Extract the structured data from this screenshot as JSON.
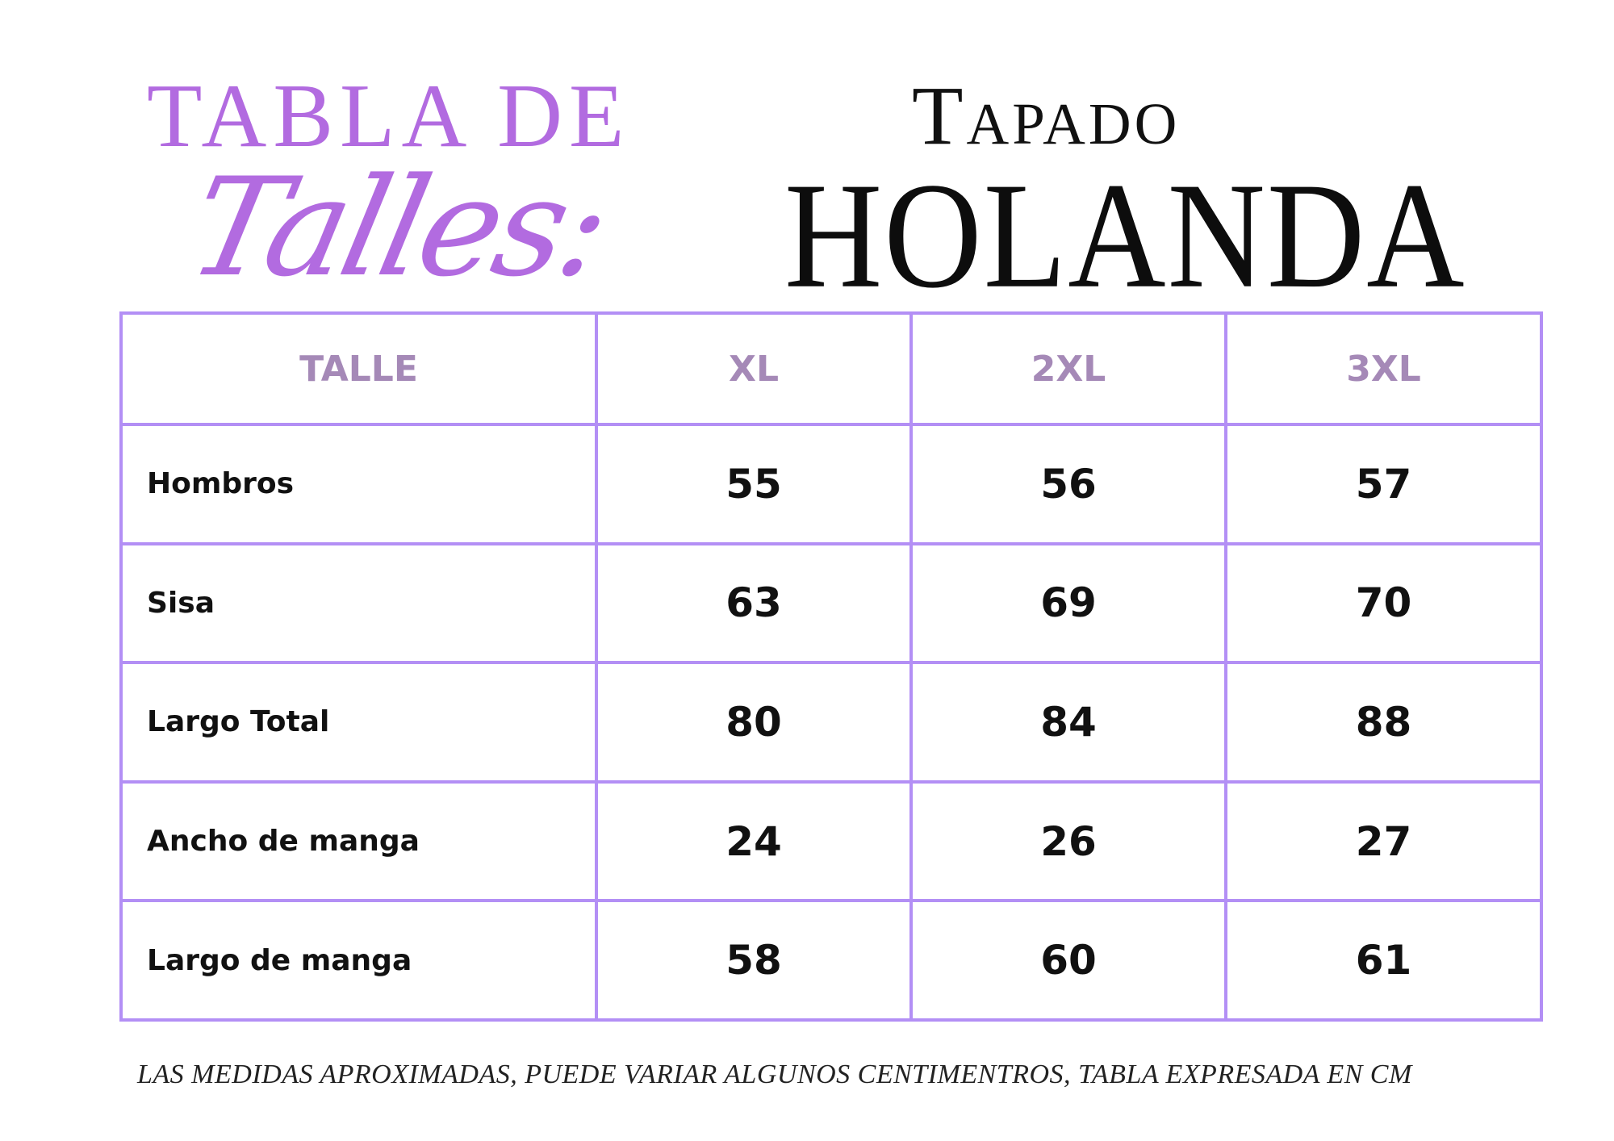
{
  "header": {
    "tabla_de": "TABLA DE",
    "talles": "Talles:",
    "tapado": "Tapado",
    "holanda": "HOLANDA"
  },
  "table": {
    "columns": [
      "TALLE",
      "XL",
      "2XL",
      "3XL"
    ],
    "rows": [
      {
        "label": "Hombros",
        "values": [
          "55",
          "56",
          "57"
        ]
      },
      {
        "label": "Sisa",
        "values": [
          "63",
          "69",
          "70"
        ]
      },
      {
        "label": "Largo Total",
        "values": [
          "80",
          "84",
          "88"
        ]
      },
      {
        "label": "Ancho de manga",
        "values": [
          "24",
          "26",
          "27"
        ]
      },
      {
        "label": "Largo de manga",
        "values": [
          "58",
          "60",
          "61"
        ]
      }
    ]
  },
  "footnote": "LAS MEDIDAS APROXIMADAS, PUEDE VARIAR ALGUNOS CENTIMENTROS, TABLA EXPRESADA EN CM",
  "colors": {
    "accent_purple": "#b26be0",
    "grid_lavender": "#b38ff5",
    "header_text": "#a589b7",
    "body_text": "#111111"
  }
}
